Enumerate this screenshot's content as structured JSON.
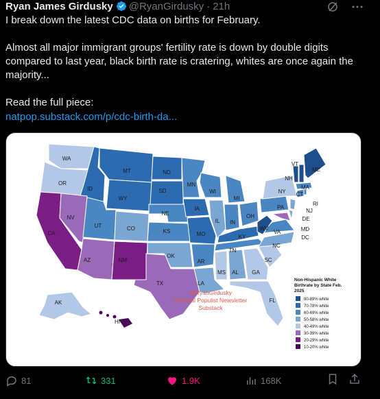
{
  "post": {
    "author_name": "Ryan James Girdusky",
    "author_handle": "@RyanGirdusky",
    "separator": "·",
    "time": "21h",
    "text": "I break down the latest CDC data on births for February.\n\nAlmost all major immigrant groups' fertility rate is down by double digits compared to last year, black birth rate is cratering, whites are once again the majority...\n\nRead the full piece:",
    "link": "natpop.substack.com/p/cdc-birth-da..."
  },
  "map": {
    "legend_title_1": "Non-Hispanic White",
    "legend_title_2": "Birthrate by State Feb.",
    "legend_title_3": "2025",
    "legend": [
      {
        "label": "80-89% white",
        "color": "#1f4e8c"
      },
      {
        "label": "70-78% white",
        "color": "#2c6bb0"
      },
      {
        "label": "60-69% white",
        "color": "#4a86c1"
      },
      {
        "label": "50-58% white",
        "color": "#7ba6d4"
      },
      {
        "label": "40-49% white",
        "color": "#b3c7e6"
      },
      {
        "label": "30-39% white",
        "color": "#9a69b8"
      },
      {
        "label": "20-29% white",
        "color": "#7a1e86"
      },
      {
        "label": "10-20% white",
        "color": "#4a0a57"
      }
    ],
    "watermark_1": "@RyanGirdusky",
    "watermark_2": "National Populist Newsletter",
    "watermark_3": "Substack",
    "states": [
      "WA",
      "OR",
      "ID",
      "MT",
      "ND",
      "MN",
      "WI",
      "MI",
      "NY",
      "VT",
      "NH",
      "ME",
      "MA",
      "CT",
      "RI",
      "NJ",
      "PA",
      "DE",
      "MD",
      "DC",
      "CA",
      "NV",
      "UT",
      "CO",
      "WY",
      "SD",
      "NE",
      "IA",
      "IL",
      "IN",
      "OH",
      "WV",
      "VA",
      "KS",
      "MO",
      "KY",
      "NC",
      "TN",
      "SC",
      "AZ",
      "NM",
      "OK",
      "AR",
      "MS",
      "AL",
      "GA",
      "TX",
      "LA",
      "FL",
      "AK",
      "HI"
    ]
  },
  "actions": {
    "replies": "81",
    "reposts": "331",
    "likes": "1.9K",
    "views": "168K"
  }
}
